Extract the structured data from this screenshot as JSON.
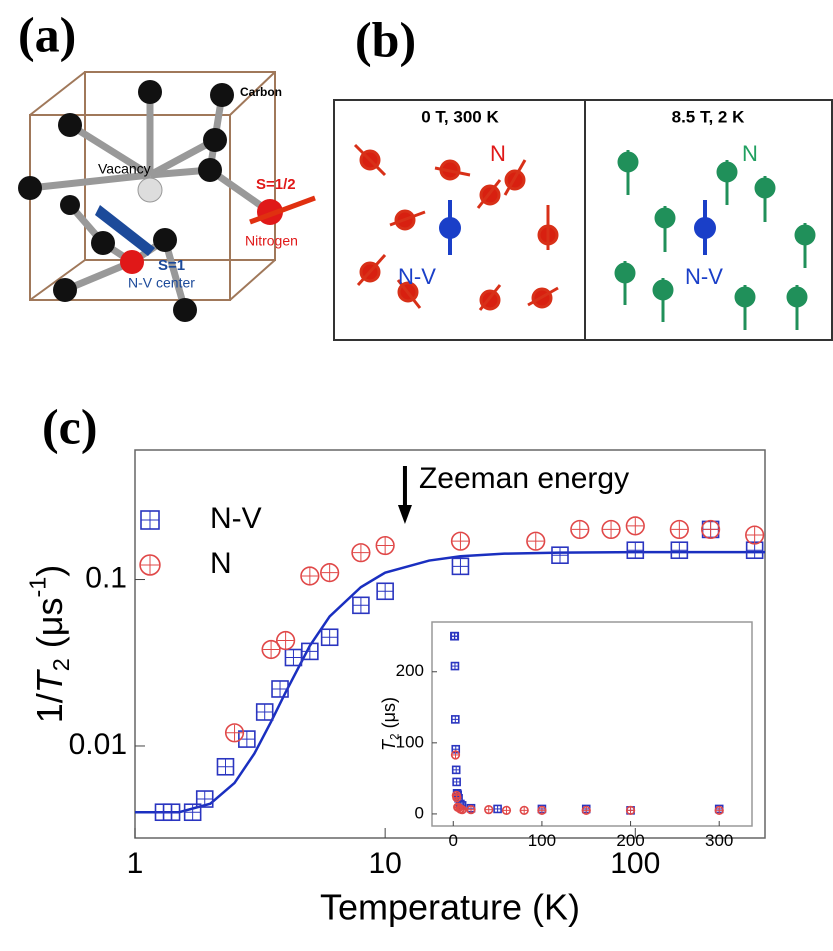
{
  "panel_a": {
    "label": "(a)",
    "carbon": "Carbon",
    "vacancy": "Vacancy",
    "spin_n": "S=1/2",
    "nitrogen": "Nitrogen",
    "spin_nv": "S=1",
    "nv_center": "N-V center"
  },
  "panel_b": {
    "label": "(b)",
    "left_title": "0 T, 300 K",
    "right_title": "8.5 T, 2 K",
    "left_n": "N",
    "left_nv": "N-V",
    "right_n": "N",
    "right_nv": "N-V"
  },
  "panel_c": {
    "label": "(c)"
  },
  "chart_data": [
    {
      "type": "scatter",
      "xlabel": "Temperature (K)",
      "ylabel_parts": [
        "1/",
        "T",
        "2",
        " (μs",
        "-1",
        ")"
      ],
      "xlog": true,
      "ylog": true,
      "xlim": [
        1,
        330
      ],
      "ylim": [
        0.0028,
        0.6
      ],
      "xticks": [
        1,
        10,
        100
      ],
      "yticks": [
        0.01,
        0.1
      ],
      "legend": "upper left",
      "annotation": {
        "text": "Zeeman energy",
        "x": 12
      },
      "series": [
        {
          "name": "N-V",
          "color": "#2a35c0",
          "marker": "square",
          "x": [
            1.3,
            1.4,
            1.7,
            1.9,
            2.3,
            2.8,
            3.3,
            3.8,
            4.3,
            5,
            6,
            8,
            10,
            20,
            50,
            100,
            150,
            200,
            300
          ],
          "values": [
            0.004,
            0.004,
            0.004,
            0.0048,
            0.0075,
            0.011,
            0.016,
            0.022,
            0.034,
            0.037,
            0.045,
            0.07,
            0.085,
            0.12,
            0.14,
            0.15,
            0.15,
            0.2,
            0.15
          ]
        },
        {
          "name": "N",
          "color": "#e04848",
          "marker": "circle",
          "x": [
            2.5,
            3.5,
            4,
            5,
            6,
            8,
            10,
            20,
            40,
            60,
            80,
            100,
            150,
            200,
            300
          ],
          "values": [
            0.012,
            0.038,
            0.043,
            0.105,
            0.11,
            0.145,
            0.16,
            0.17,
            0.17,
            0.2,
            0.2,
            0.21,
            0.2,
            0.2,
            0.185
          ]
        }
      ],
      "fit": {
        "color": "#1a2fc0",
        "x": [
          1,
          1.5,
          2,
          2.5,
          3,
          3.5,
          4,
          5,
          6,
          8,
          10,
          15,
          20,
          30,
          50,
          100,
          330
        ],
        "values": [
          0.004,
          0.004,
          0.0045,
          0.006,
          0.009,
          0.014,
          0.021,
          0.04,
          0.06,
          0.09,
          0.11,
          0.13,
          0.138,
          0.143,
          0.145,
          0.146,
          0.146
        ]
      }
    },
    {
      "type": "scatter",
      "ylabel_parts": [
        "T",
        "2",
        " (μs)"
      ],
      "xlog": false,
      "ylog": false,
      "xlim": [
        -24,
        337
      ],
      "ylim": [
        -17,
        270
      ],
      "xticks": [
        0,
        100,
        200,
        300
      ],
      "yticks": [
        0,
        100,
        200
      ],
      "series": [
        {
          "color": "#2a35c0",
          "marker": "square",
          "x": [
            1.3,
            1.4,
            1.7,
            1.9,
            2.3,
            2.8,
            3.3,
            3.8,
            4.3,
            5,
            6,
            8,
            10,
            20,
            50,
            100,
            150,
            200,
            300
          ],
          "values": [
            250,
            250,
            250,
            208,
            133,
            91,
            62,
            45,
            29,
            27,
            22,
            14,
            12,
            8,
            7,
            7,
            7,
            5,
            7
          ]
        },
        {
          "color": "#e04848",
          "marker": "circle",
          "x": [
            2.5,
            3.5,
            4,
            5,
            6,
            8,
            10,
            20,
            40,
            60,
            80,
            100,
            150,
            200,
            300
          ],
          "values": [
            83,
            26,
            23,
            9.5,
            9,
            7,
            6,
            6,
            6,
            5,
            5,
            5,
            5,
            5,
            5
          ]
        }
      ]
    }
  ]
}
